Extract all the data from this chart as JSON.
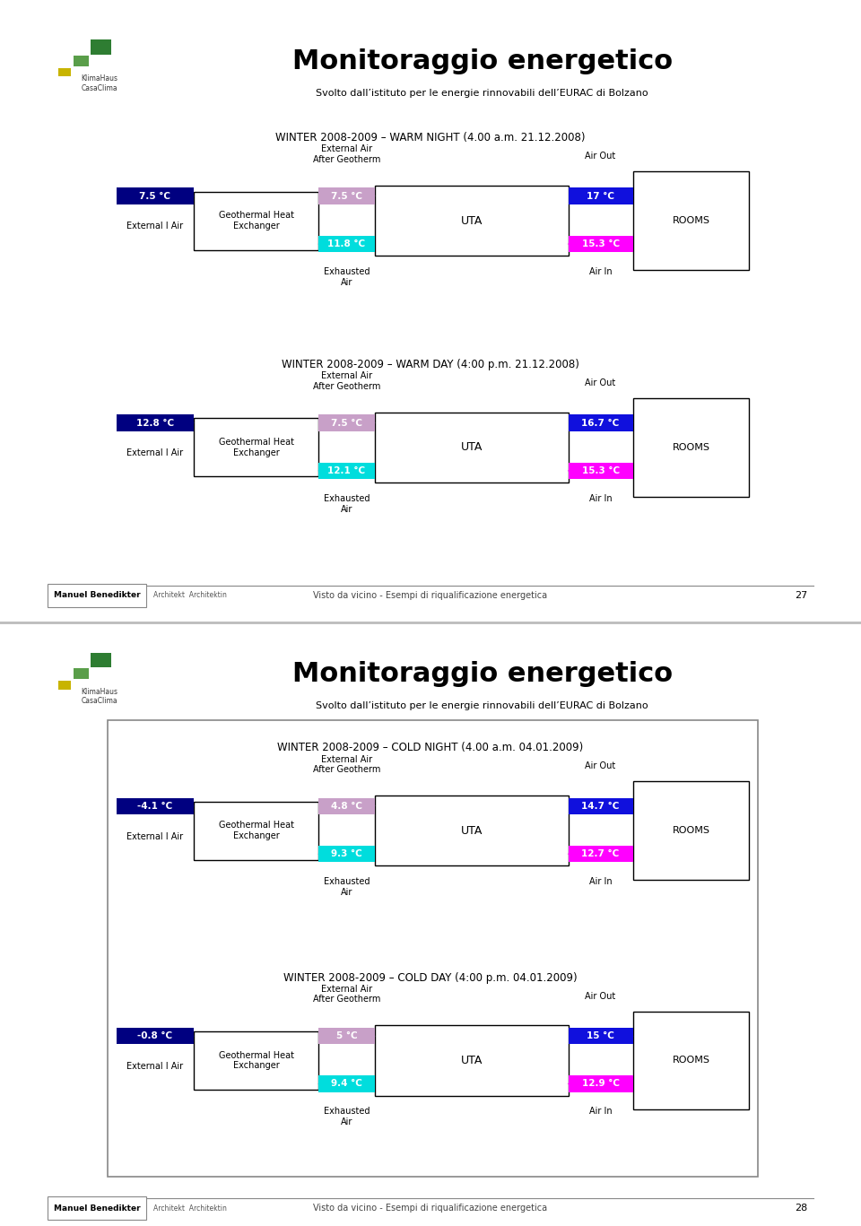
{
  "title": "Monitoraggio energetico",
  "subtitle": "Svolto dall’istituto per le energie rinnovabili dell’EURAC di Bolzano",
  "page1": {
    "diagrams": [
      {
        "title": "WINTER 2008-2009 – WARM NIGHT (4.00 a.m. 21.12.2008)",
        "external_temp": "7.5 °C",
        "external_arrow_color": "#000080",
        "after_geotherm_temp": "7.5 °C",
        "after_geotherm_arrow_color": "#C8A0C8",
        "exhausted_temp": "11.8 °C",
        "exhausted_arrow_color": "#00DDDD",
        "air_out_temp": "17 °C",
        "air_out_arrow_color": "#1010DD",
        "air_in_temp": "15.3 °C",
        "air_in_arrow_color": "#FF00FF"
      },
      {
        "title": "WINTER 2008-2009 – WARM DAY (4:00 p.m. 21.12.2008)",
        "external_temp": "12.8 °C",
        "external_arrow_color": "#000080",
        "after_geotherm_temp": "7.5 °C",
        "after_geotherm_arrow_color": "#C8A0C8",
        "exhausted_temp": "12.1 °C",
        "exhausted_arrow_color": "#00DDDD",
        "air_out_temp": "16.7 °C",
        "air_out_arrow_color": "#1010DD",
        "air_in_temp": "15.3 °C",
        "air_in_arrow_color": "#FF00FF"
      }
    ]
  },
  "page2": {
    "border": true,
    "diagrams": [
      {
        "title": "WINTER 2008-2009 – COLD NIGHT (4.00 a.m. 04.01.2009)",
        "external_temp": "-4.1 °C",
        "external_arrow_color": "#000080",
        "after_geotherm_temp": "4.8 °C",
        "after_geotherm_arrow_color": "#C8A0C8",
        "exhausted_temp": "9.3 °C",
        "exhausted_arrow_color": "#00DDDD",
        "air_out_temp": "14.7 °C",
        "air_out_arrow_color": "#1010DD",
        "air_in_temp": "12.7 °C",
        "air_in_arrow_color": "#FF00FF"
      },
      {
        "title": "WINTER 2008-2009 – COLD DAY (4:00 p.m. 04.01.2009)",
        "external_temp": "-0.8 °C",
        "external_arrow_color": "#000080",
        "after_geotherm_temp": "5 °C",
        "after_geotherm_arrow_color": "#C8A0C8",
        "exhausted_temp": "9.4 °C",
        "exhausted_arrow_color": "#00DDDD",
        "air_out_temp": "15 °C",
        "air_out_arrow_color": "#1010DD",
        "air_in_temp": "12.9 °C",
        "air_in_arrow_color": "#FF00FF"
      }
    ]
  },
  "footer_left": "Manuel Benedikter",
  "footer_left_sub": "Architekt  Architektin",
  "footer_center": "Visto da vicino - Esempi di riqualificazione energetica",
  "page1_num": "27",
  "page2_num": "28",
  "logo_small_color": "#C8B400",
  "logo_med_color": "#5A9E4A",
  "logo_large_color": "#2E7D32",
  "bg_color": "#FFFFFF"
}
